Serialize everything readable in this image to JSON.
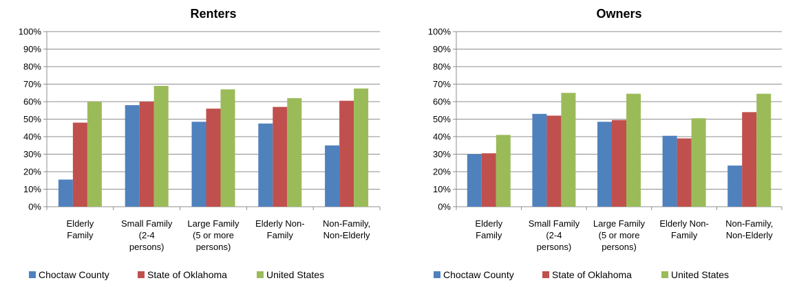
{
  "chart_data": [
    {
      "type": "bar",
      "title": "Renters",
      "categories": [
        [
          "Elderly",
          "Family"
        ],
        [
          "Small Family",
          "(2-4",
          "persons)"
        ],
        [
          "Large Family",
          "(5 or more",
          "persons)"
        ],
        [
          "Elderly Non-",
          "Family"
        ],
        [
          "Non-Family,",
          "Non-Elderly"
        ]
      ],
      "ylim": [
        0,
        100
      ],
      "yticks": [
        "0%",
        "10%",
        "20%",
        "30%",
        "40%",
        "50%",
        "60%",
        "70%",
        "80%",
        "90%",
        "100%"
      ],
      "grid": true,
      "legend": "bottom",
      "series": [
        {
          "name": "Choctaw County",
          "color": "#4f81bd",
          "values": [
            15.5,
            58,
            48.5,
            47.5,
            35
          ]
        },
        {
          "name": "State of Oklahoma",
          "color": "#c0504d",
          "values": [
            48,
            60,
            56,
            57,
            60.5
          ]
        },
        {
          "name": "United States",
          "color": "#9bbb59",
          "values": [
            60,
            69,
            67,
            62,
            67.5
          ]
        }
      ]
    },
    {
      "type": "bar",
      "title": "Owners",
      "categories": [
        [
          "Elderly",
          "Family"
        ],
        [
          "Small Family",
          "(2-4",
          "persons)"
        ],
        [
          "Large Family",
          "(5 or more",
          "persons)"
        ],
        [
          "Elderly Non-",
          "Family"
        ],
        [
          "Non-Family,",
          "Non-Elderly"
        ]
      ],
      "ylim": [
        0,
        100
      ],
      "yticks": [
        "0%",
        "10%",
        "20%",
        "30%",
        "40%",
        "50%",
        "60%",
        "70%",
        "80%",
        "90%",
        "100%"
      ],
      "grid": true,
      "legend": "bottom",
      "series": [
        {
          "name": "Choctaw County",
          "color": "#4f81bd",
          "values": [
            30,
            53,
            48.5,
            40.5,
            23.5
          ]
        },
        {
          "name": "State of Oklahoma",
          "color": "#c0504d",
          "values": [
            30.5,
            52,
            49.5,
            39,
            54
          ]
        },
        {
          "name": "United States",
          "color": "#9bbb59",
          "values": [
            41,
            65,
            64.5,
            50.5,
            64.5
          ]
        }
      ]
    }
  ]
}
